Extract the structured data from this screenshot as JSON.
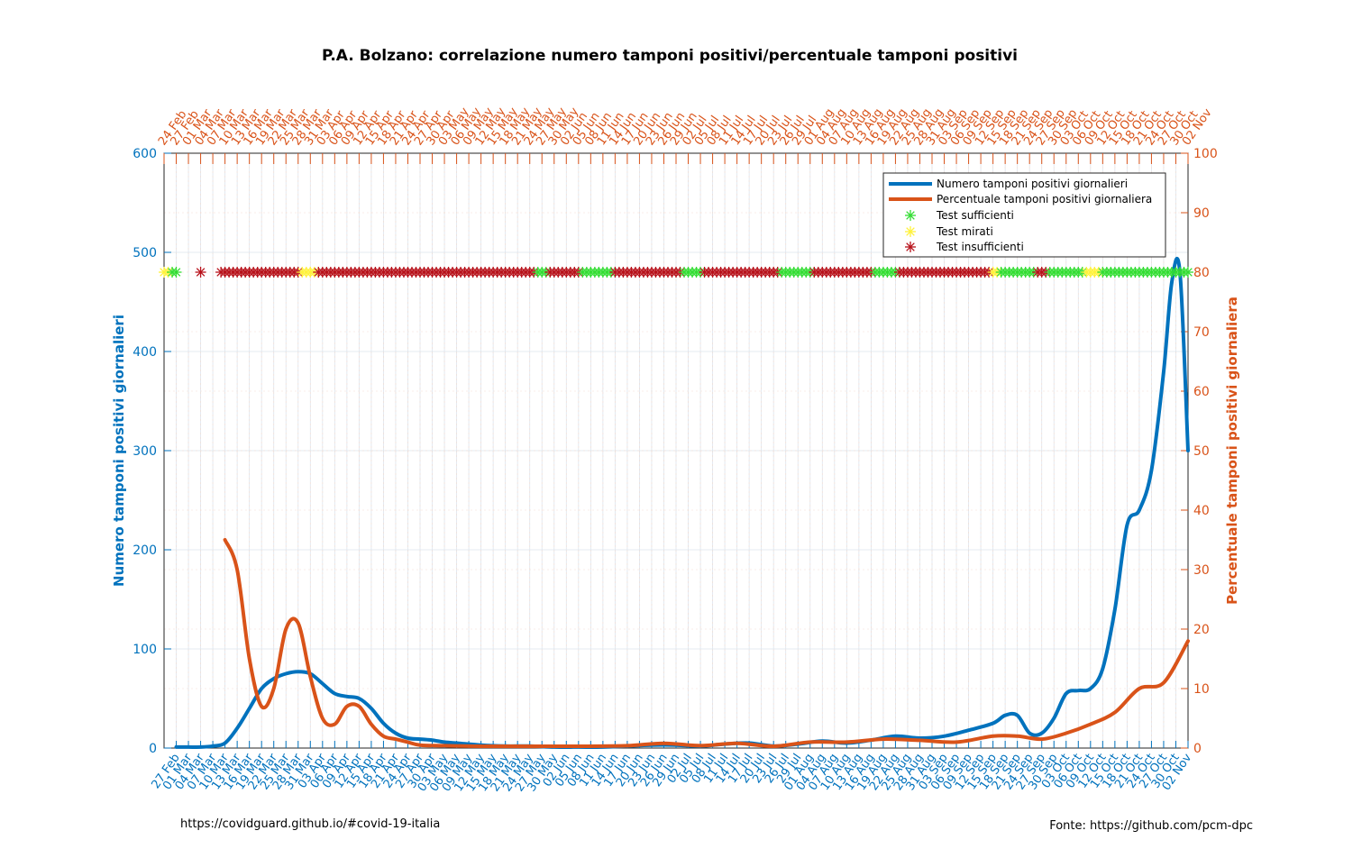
{
  "chart_data": {
    "type": "line",
    "title": "P.A. Bolzano: correlazione numero tamponi positivi/percentuale tamponi positivi",
    "ylabel_left": "Numero tamponi positivi giornalieri",
    "ylabel_right": "Percentuale tamponi positivi giornaliera",
    "ylim_left": [
      0,
      600
    ],
    "ylim_right": [
      0,
      100
    ],
    "yticks_left": [
      "0",
      "100",
      "200",
      "300",
      "400",
      "500",
      "600"
    ],
    "yticks_right": [
      "0",
      "10",
      "20",
      "30",
      "40",
      "50",
      "60",
      "70",
      "80",
      "90",
      "100"
    ],
    "xlim": [
      "2020-02-24",
      "2020-11-02"
    ],
    "xticks_bottom": [
      "27 Feb",
      "01 Mar",
      "04 Mar",
      "07 Mar",
      "10 Mar",
      "13 Mar",
      "16 Mar",
      "19 Mar",
      "22 Mar",
      "25 Mar",
      "28 Mar",
      "31 Mar",
      "03 Apr",
      "06 Apr",
      "09 Apr",
      "12 Apr",
      "15 Apr",
      "18 Apr",
      "21 Apr",
      "24 Apr",
      "27 Apr",
      "30 Apr",
      "03 May",
      "06 May",
      "09 May",
      "12 May",
      "15 May",
      "18 May",
      "21 May",
      "24 May",
      "27 May",
      "30 May",
      "02 Jun",
      "05 Jun",
      "08 Jun",
      "11 Jun",
      "14 Jun",
      "17 Jun",
      "20 Jun",
      "23 Jun",
      "26 Jun",
      "29 Jun",
      "02 Jul",
      "05 Jul",
      "08 Jul",
      "11 Jul",
      "14 Jul",
      "17 Jul",
      "20 Jul",
      "23 Jul",
      "26 Jul",
      "29 Jul",
      "01 Aug",
      "04 Aug",
      "07 Aug",
      "10 Aug",
      "13 Aug",
      "16 Aug",
      "19 Aug",
      "22 Aug",
      "25 Aug",
      "28 Aug",
      "31 Aug",
      "03 Sep",
      "06 Sep",
      "09 Sep",
      "12 Sep",
      "15 Sep",
      "18 Sep",
      "21 Sep",
      "24 Sep",
      "27 Sep",
      "30 Sep",
      "03 Oct",
      "06 Oct",
      "09 Oct",
      "12 Oct",
      "15 Oct",
      "18 Oct",
      "21 Oct",
      "24 Oct",
      "27 Oct",
      "30 Oct",
      "02 Nov"
    ],
    "xticks_top": [
      "24 Feb",
      "27 Feb",
      "01 Mar",
      "04 Mar",
      "07 Mar",
      "10 Mar",
      "13 Mar",
      "16 Mar",
      "19 Mar",
      "22 Mar",
      "25 Mar",
      "28 Mar",
      "31 Mar",
      "03 Apr",
      "06 Apr",
      "09 Apr",
      "12 Apr",
      "15 Apr",
      "18 Apr",
      "21 Apr",
      "24 Apr",
      "27 Apr",
      "30 Apr",
      "03 May",
      "06 May",
      "09 May",
      "12 May",
      "15 May",
      "18 May",
      "21 May",
      "24 May",
      "27 May",
      "30 May",
      "02 Jun",
      "05 Jun",
      "08 Jun",
      "11 Jun",
      "14 Jun",
      "17 Jun",
      "20 Jun",
      "23 Jun",
      "26 Jun",
      "29 Jun",
      "02 Jul",
      "05 Jul",
      "08 Jul",
      "11 Jul",
      "14 Jul",
      "17 Jul",
      "20 Jul",
      "23 Jul",
      "26 Jul",
      "29 Jul",
      "01 Aug",
      "04 Aug",
      "07 Aug",
      "10 Aug",
      "13 Aug",
      "16 Aug",
      "19 Aug",
      "22 Aug",
      "25 Aug",
      "28 Aug",
      "31 Aug",
      "03 Sep",
      "06 Sep",
      "09 Sep",
      "12 Sep",
      "15 Sep",
      "18 Sep",
      "21 Sep",
      "24 Sep",
      "27 Sep",
      "30 Sep",
      "03 Oct",
      "06 Oct",
      "09 Oct",
      "12 Oct",
      "15 Oct",
      "18 Oct",
      "21 Oct",
      "24 Oct",
      "27 Oct",
      "30 Oct",
      "02 Nov"
    ],
    "grid": true,
    "legend_position": "top-right",
    "series": [
      {
        "name": "Numero tamponi positivi giornalieri",
        "axis": "left",
        "color": "#0072BD",
        "x": [
          "2020-02-27",
          "2020-03-01",
          "2020-03-04",
          "2020-03-07",
          "2020-03-10",
          "2020-03-13",
          "2020-03-16",
          "2020-03-19",
          "2020-03-22",
          "2020-03-25",
          "2020-03-28",
          "2020-03-31",
          "2020-04-03",
          "2020-04-06",
          "2020-04-09",
          "2020-04-12",
          "2020-04-15",
          "2020-04-18",
          "2020-04-21",
          "2020-04-24",
          "2020-04-27",
          "2020-04-30",
          "2020-05-03",
          "2020-05-06",
          "2020-05-12",
          "2020-05-18",
          "2020-05-24",
          "2020-05-30",
          "2020-06-05",
          "2020-06-11",
          "2020-06-17",
          "2020-06-23",
          "2020-06-29",
          "2020-07-05",
          "2020-07-11",
          "2020-07-17",
          "2020-07-23",
          "2020-07-29",
          "2020-08-04",
          "2020-08-10",
          "2020-08-16",
          "2020-08-22",
          "2020-08-28",
          "2020-09-03",
          "2020-09-09",
          "2020-09-15",
          "2020-09-18",
          "2020-09-21",
          "2020-09-24",
          "2020-09-27",
          "2020-09-30",
          "2020-10-03",
          "2020-10-06",
          "2020-10-09",
          "2020-10-12",
          "2020-10-15",
          "2020-10-18",
          "2020-10-21",
          "2020-10-24",
          "2020-10-27",
          "2020-10-29",
          "2020-10-31",
          "2020-11-02"
        ],
        "values": [
          1,
          1,
          1,
          2,
          5,
          20,
          40,
          60,
          70,
          75,
          77,
          75,
          65,
          55,
          52,
          50,
          40,
          25,
          15,
          10,
          9,
          8,
          6,
          5,
          3,
          2,
          2,
          1,
          1,
          1,
          2,
          3,
          3,
          2,
          4,
          5,
          2,
          4,
          7,
          5,
          8,
          12,
          10,
          12,
          18,
          25,
          33,
          33,
          15,
          15,
          30,
          55,
          58,
          60,
          80,
          140,
          225,
          240,
          280,
          380,
          470,
          480,
          300
        ]
      },
      {
        "name": "Percentuale tamponi positivi giornaliera",
        "axis": "right",
        "color": "#D95319",
        "x": [
          "2020-03-10",
          "2020-03-13",
          "2020-03-16",
          "2020-03-19",
          "2020-03-22",
          "2020-03-25",
          "2020-03-28",
          "2020-03-31",
          "2020-04-03",
          "2020-04-06",
          "2020-04-09",
          "2020-04-12",
          "2020-04-15",
          "2020-04-18",
          "2020-04-21",
          "2020-04-24",
          "2020-04-27",
          "2020-05-03",
          "2020-05-12",
          "2020-05-24",
          "2020-06-05",
          "2020-06-17",
          "2020-06-26",
          "2020-07-05",
          "2020-07-14",
          "2020-07-23",
          "2020-08-01",
          "2020-08-10",
          "2020-08-19",
          "2020-08-28",
          "2020-09-06",
          "2020-09-15",
          "2020-09-21",
          "2020-09-27",
          "2020-10-03",
          "2020-10-09",
          "2020-10-15",
          "2020-10-21",
          "2020-10-27",
          "2020-11-02"
        ],
        "values": [
          35,
          30,
          15,
          7,
          10,
          20,
          21,
          12,
          5,
          4,
          7,
          7,
          4,
          2,
          1.5,
          1,
          0.5,
          0.4,
          0.3,
          0.3,
          0.3,
          0.4,
          0.8,
          0.4,
          0.8,
          0.3,
          1,
          1,
          1.5,
          1.3,
          1,
          2,
          2,
          1.5,
          2.5,
          4,
          6,
          10,
          11,
          18
        ]
      }
    ],
    "markers": {
      "y_level": 80,
      "axis": "right",
      "types": [
        {
          "name": "Test sufficienti",
          "color": "#33DD33"
        },
        {
          "name": "Test mirati",
          "color": "#FFF23A"
        },
        {
          "name": "Test insufficienti",
          "color": "#B7121B"
        }
      ]
    }
  },
  "footer": {
    "left": "https://covidguard.github.io/#covid-19-italia",
    "right": "Fonte: https://github.com/pcm-dpc"
  }
}
